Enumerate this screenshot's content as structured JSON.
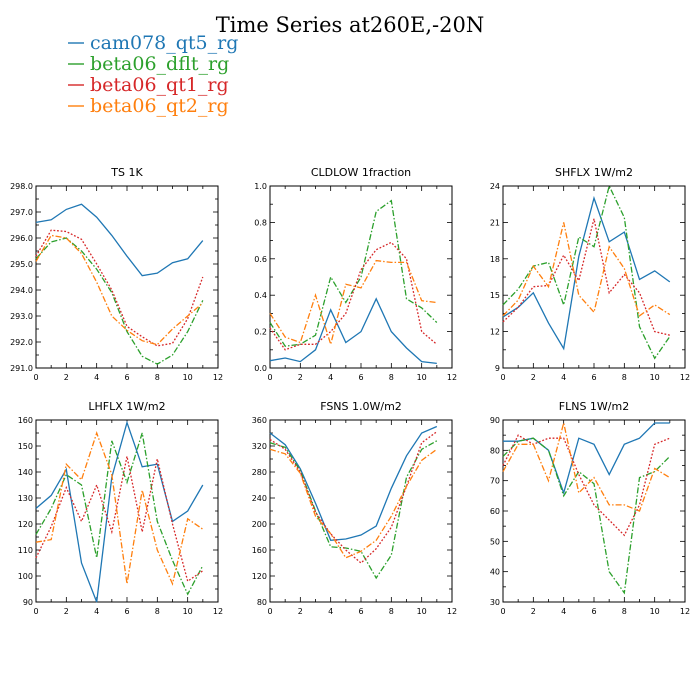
{
  "figure": {
    "title": "Time Series at260E,-20N",
    "legend": [
      {
        "name": "cam078_qt5_rg",
        "color": "#1f77b4",
        "dash": "solid"
      },
      {
        "name": "beta06_dflt_rg",
        "color": "#2ca02c",
        "dash": "dashdot"
      },
      {
        "name": "beta06_qt1_rg",
        "color": "#d62728",
        "dash": "dotted"
      },
      {
        "name": "beta06_qt2_rg",
        "color": "#ff7f0e",
        "dash": "dashdot"
      }
    ]
  },
  "chart_data": [
    {
      "type": "line",
      "title": "TS   1K",
      "xlim": [
        0,
        12
      ],
      "ylim": [
        291,
        298
      ],
      "xticks": [
        "0",
        "2",
        "4",
        "6",
        "8",
        "10",
        "12"
      ],
      "yticks": [
        "291.0",
        "292.0",
        "293.0",
        "294.0",
        "295.0",
        "296.0",
        "297.0",
        "298.0"
      ],
      "x": [
        0,
        1,
        2,
        3,
        4,
        5,
        6,
        7,
        8,
        9,
        10,
        11
      ],
      "series": [
        {
          "name": "cam078_qt5_rg",
          "values": [
            296.6,
            296.7,
            297.1,
            297.3,
            296.8,
            296.1,
            295.3,
            294.55,
            294.65,
            295.05,
            295.2,
            295.9
          ]
        },
        {
          "name": "beta06_dflt_rg",
          "values": [
            295.2,
            295.85,
            296.0,
            295.5,
            294.8,
            293.9,
            292.4,
            291.45,
            291.15,
            291.5,
            292.4,
            293.6
          ]
        },
        {
          "name": "beta06_qt1_rg",
          "values": [
            295.3,
            296.3,
            296.25,
            295.95,
            295.0,
            294.0,
            292.6,
            292.2,
            291.85,
            291.95,
            292.9,
            294.5
          ]
        },
        {
          "name": "beta06_qt2_rg",
          "values": [
            295.1,
            296.1,
            296.0,
            295.4,
            294.3,
            293.0,
            292.45,
            292.05,
            291.9,
            292.5,
            293.0,
            293.5
          ]
        }
      ]
    },
    {
      "type": "line",
      "title": "CLDLOW   1fraction",
      "xlim": [
        0,
        12
      ],
      "ylim": [
        0,
        1
      ],
      "xticks": [
        "0",
        "2",
        "4",
        "6",
        "8",
        "10",
        "12"
      ],
      "yticks": [
        "0.0",
        "0.2",
        "0.4",
        "0.6",
        "0.8",
        "1.0"
      ],
      "x": [
        0,
        1,
        2,
        3,
        4,
        5,
        6,
        7,
        8,
        9,
        10,
        11
      ],
      "series": [
        {
          "name": "cam078_qt5_rg",
          "values": [
            0.04,
            0.055,
            0.035,
            0.1,
            0.32,
            0.14,
            0.2,
            0.38,
            0.2,
            0.11,
            0.035,
            0.025
          ]
        },
        {
          "name": "beta06_dflt_rg",
          "values": [
            0.25,
            0.12,
            0.13,
            0.18,
            0.5,
            0.36,
            0.5,
            0.86,
            0.92,
            0.38,
            0.33,
            0.25
          ]
        },
        {
          "name": "beta06_qt1_rg",
          "values": [
            0.22,
            0.1,
            0.13,
            0.13,
            0.2,
            0.3,
            0.54,
            0.65,
            0.69,
            0.6,
            0.2,
            0.13
          ]
        },
        {
          "name": "beta06_qt2_rg",
          "values": [
            0.3,
            0.17,
            0.14,
            0.4,
            0.13,
            0.46,
            0.44,
            0.59,
            0.58,
            0.58,
            0.37,
            0.36
          ]
        }
      ]
    },
    {
      "type": "line",
      "title": "SHFLX   1W/m2",
      "xlim": [
        0,
        12
      ],
      "ylim": [
        9,
        24
      ],
      "xticks": [
        "0",
        "2",
        "4",
        "6",
        "8",
        "10",
        "12"
      ],
      "yticks": [
        "9",
        "12",
        "15",
        "18",
        "21",
        "24"
      ],
      "x": [
        0,
        1,
        2,
        3,
        4,
        5,
        6,
        7,
        8,
        9,
        10,
        11
      ],
      "series": [
        {
          "name": "cam078_qt5_rg",
          "values": [
            13.2,
            14.0,
            15.2,
            12.7,
            10.6,
            18.2,
            23.0,
            19.4,
            20.2,
            16.3,
            17.0,
            16.1
          ]
        },
        {
          "name": "beta06_dflt_rg",
          "values": [
            14.2,
            15.5,
            17.4,
            17.7,
            14.2,
            19.8,
            19.0,
            24.0,
            21.4,
            12.4,
            9.8,
            11.6
          ]
        },
        {
          "name": "beta06_qt1_rg",
          "values": [
            12.8,
            14.0,
            15.7,
            15.8,
            18.3,
            16.2,
            21.3,
            15.2,
            16.7,
            15.2,
            12.0,
            11.7
          ]
        },
        {
          "name": "beta06_qt2_rg",
          "values": [
            13.3,
            14.6,
            17.4,
            15.7,
            21.0,
            15.0,
            13.6,
            19.0,
            17.2,
            13.3,
            14.2,
            13.4
          ]
        }
      ]
    },
    {
      "type": "line",
      "title": "LHFLX   1W/m2",
      "xlim": [
        0,
        12
      ],
      "ylim": [
        90,
        160
      ],
      "xticks": [
        "0",
        "2",
        "4",
        "6",
        "8",
        "10",
        "12"
      ],
      "yticks": [
        "90",
        "100",
        "110",
        "120",
        "130",
        "140",
        "150",
        "160"
      ],
      "x": [
        0,
        1,
        2,
        3,
        4,
        5,
        6,
        7,
        8,
        9,
        10,
        11
      ],
      "series": [
        {
          "name": "cam078_qt5_rg",
          "values": [
            126,
            131,
            141,
            105,
            90,
            138,
            159,
            142,
            143,
            121,
            125,
            135
          ]
        },
        {
          "name": "beta06_dflt_rg",
          "values": [
            116,
            126,
            139,
            135,
            107,
            152,
            136,
            155,
            121,
            106,
            93,
            104
          ]
        },
        {
          "name": "beta06_qt1_rg",
          "values": [
            107,
            119,
            134,
            121,
            135,
            117,
            146,
            117,
            145,
            120,
            98,
            102
          ]
        },
        {
          "name": "beta06_qt2_rg",
          "values": [
            113,
            114,
            143,
            137,
            155,
            139,
            97,
            133,
            110,
            97,
            122,
            118
          ]
        }
      ]
    },
    {
      "type": "line",
      "title": "FSNS   1.0W/m2",
      "xlim": [
        0,
        12
      ],
      "ylim": [
        80,
        360
      ],
      "xticks": [
        "0",
        "2",
        "4",
        "6",
        "8",
        "10",
        "12"
      ],
      "yticks": [
        "80",
        "120",
        "160",
        "200",
        "240",
        "280",
        "320",
        "360"
      ],
      "x": [
        0,
        1,
        2,
        3,
        4,
        5,
        6,
        7,
        8,
        9,
        10,
        11
      ],
      "series": [
        {
          "name": "cam078_qt5_rg",
          "values": [
            340,
            322,
            285,
            232,
            175,
            177,
            183,
            197,
            255,
            305,
            340,
            350
          ]
        },
        {
          "name": "beta06_dflt_rg",
          "values": [
            325,
            318,
            282,
            220,
            165,
            163,
            158,
            117,
            152,
            272,
            315,
            328
          ]
        },
        {
          "name": "beta06_qt1_rg",
          "values": [
            330,
            315,
            280,
            218,
            185,
            160,
            140,
            162,
            195,
            258,
            325,
            342
          ]
        },
        {
          "name": "beta06_qt2_rg",
          "values": [
            315,
            308,
            278,
            212,
            185,
            148,
            158,
            175,
            212,
            258,
            298,
            315
          ]
        }
      ]
    },
    {
      "type": "line",
      "title": "FLNS   1W/m2",
      "xlim": [
        0,
        12
      ],
      "ylim": [
        30,
        90
      ],
      "xticks": [
        "0",
        "2",
        "4",
        "6",
        "8",
        "10",
        "12"
      ],
      "yticks": [
        "30",
        "40",
        "50",
        "60",
        "70",
        "80",
        "90"
      ],
      "x": [
        0,
        1,
        2,
        3,
        4,
        5,
        6,
        7,
        8,
        9,
        10,
        11
      ],
      "series": [
        {
          "name": "cam078_qt5_rg",
          "values": [
            83,
            83,
            84,
            80,
            66,
            84,
            82,
            72,
            82,
            84,
            89,
            89
          ]
        },
        {
          "name": "beta06_dflt_rg",
          "values": [
            78,
            83,
            84,
            80,
            65,
            73,
            69,
            40,
            33,
            71,
            73,
            78
          ]
        },
        {
          "name": "beta06_qt1_rg",
          "values": [
            75,
            85,
            82,
            84,
            84,
            72,
            62,
            57,
            52,
            62,
            82,
            84
          ]
        },
        {
          "name": "beta06_qt2_rg",
          "values": [
            73,
            82,
            82,
            70,
            89,
            66,
            71,
            62,
            62,
            60,
            74,
            71
          ]
        }
      ]
    }
  ]
}
